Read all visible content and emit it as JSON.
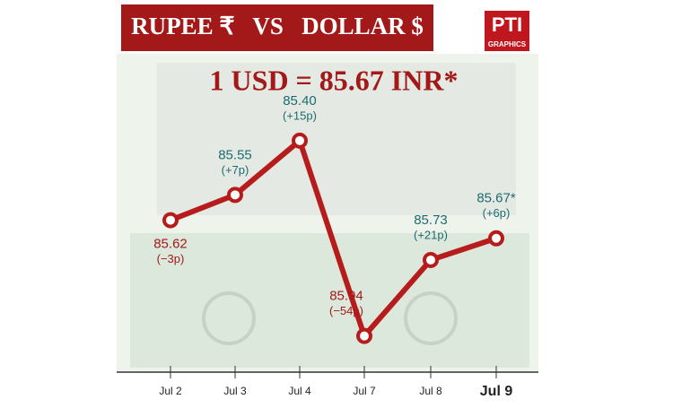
{
  "chart_data": {
    "type": "line",
    "title": "RUPEE ₹   VS   DOLLAR $",
    "logo": "PTI",
    "logo_sub": "GRAPHICS",
    "subtitle": "1 USD = 85.67 INR*",
    "categories": [
      "Jul 2",
      "Jul 3",
      "Jul 4",
      "Jul 7",
      "Jul 8",
      "Jul 9"
    ],
    "values": [
      85.62,
      85.55,
      85.4,
      85.94,
      85.73,
      85.67
    ],
    "value_labels": [
      "85.62",
      "85.55",
      "85.40",
      "85.94",
      "85.73",
      "85.67*"
    ],
    "changes": [
      "(−3p)",
      "(+7p)",
      "(+15p)",
      "(−54p)",
      "(+21p)",
      "(+6p)"
    ],
    "label_colors": [
      "#a11a1a",
      "#1d6b70",
      "#1d6b70",
      "#a11a1a",
      "#1d6b70",
      "#1d6b70"
    ],
    "color": "#b71c1c",
    "ylim": [
      86.04,
      85.16
    ]
  }
}
